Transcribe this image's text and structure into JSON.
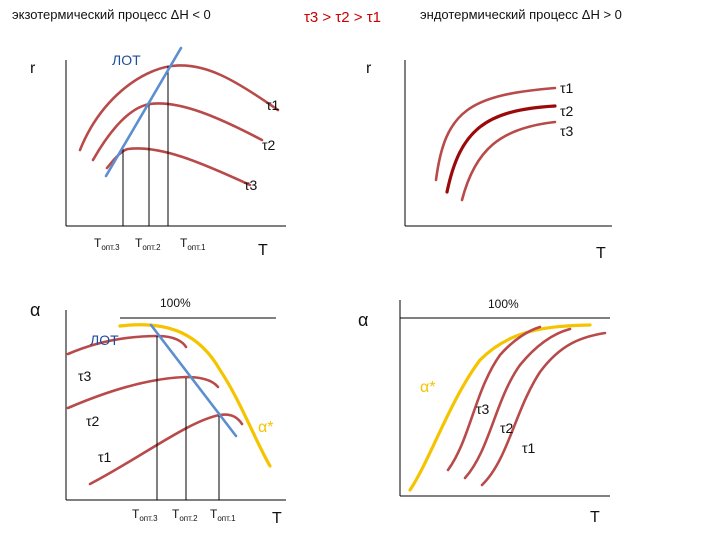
{
  "header": {
    "exo_title": "экзотермический процесс ΔH < 0",
    "order": "τ3 > τ2 > τ1",
    "endo_title": "эндотермический процесс ΔH > 0"
  },
  "colors": {
    "curve": "#b84a4a",
    "curve_highlight": "#9b0a0a",
    "lot_line": "#5b8fcf",
    "equilibrium": "#f5c400",
    "order_text": "#cc0000"
  },
  "top_left": {
    "y_axis": "r",
    "x_axis": "T",
    "lot_label": "ЛОТ",
    "curve_labels": [
      "τ1",
      "τ2",
      "τ3"
    ],
    "t_opt": {
      "base": "T",
      "sub3": "опт.3",
      "sub2": "опт.2",
      "sub1": "опт.1"
    }
  },
  "top_right": {
    "y_axis": "r",
    "x_axis": "T",
    "curve_labels": [
      "τ1",
      "τ2",
      "τ3"
    ]
  },
  "bottom_left": {
    "y_axis": "α",
    "x_axis": "T",
    "percent": "100%",
    "lot_label": "ЛОТ",
    "eq_label": "α*",
    "curve_labels": [
      "τ3",
      "τ2",
      "τ1"
    ],
    "t_opt": {
      "base": "T",
      "sub3": "опт.3",
      "sub2": "опт.2",
      "sub1": "опт.1"
    }
  },
  "bottom_right": {
    "y_axis": "α",
    "x_axis": "T",
    "percent": "100%",
    "eq_label": "α*",
    "curve_labels": [
      "τ3",
      "τ2",
      "τ1"
    ]
  }
}
